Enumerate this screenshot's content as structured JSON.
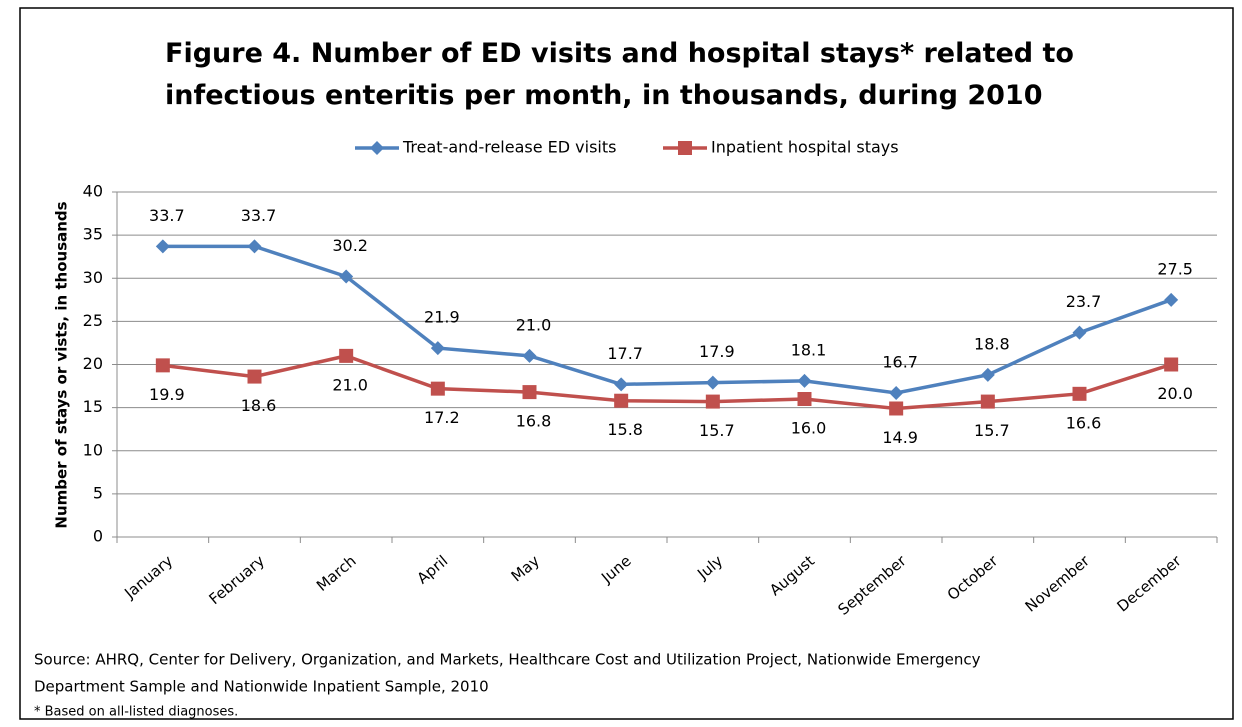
{
  "chart_data": {
    "type": "line",
    "title": [
      "Figure 4. Number of ED visits and hospital stays* related to",
      "infectious enteritis per month, in thousands, during 2010"
    ],
    "y_label": "Number of stays or vists, in thousands",
    "categories": [
      "January",
      "February",
      "March",
      "April",
      "May",
      "June",
      "July",
      "August",
      "September",
      "October",
      "November",
      "December"
    ],
    "series": [
      {
        "name": "Treat-and-release ED visits",
        "color": "#4f81bd",
        "marker": "diamond",
        "values": [
          33.7,
          33.7,
          30.2,
          21.9,
          21.0,
          17.7,
          17.9,
          18.1,
          16.7,
          18.8,
          23.7,
          27.5
        ],
        "value_labels": [
          "33.7",
          "33.7",
          "30.2",
          "21.9",
          "21.0",
          "17.7",
          "17.9",
          "18.1",
          "16.7",
          "18.8",
          "23.7",
          "27.5"
        ]
      },
      {
        "name": "Inpatient hospital stays",
        "color": "#c0504d",
        "marker": "square",
        "values": [
          19.9,
          18.6,
          21.0,
          17.2,
          16.8,
          15.8,
          15.7,
          16.0,
          14.9,
          15.7,
          16.6,
          20.0
        ],
        "value_labels": [
          "19.9",
          "18.6",
          "21.0",
          "17.2",
          "16.8",
          "15.8",
          "15.7",
          "16.0",
          "14.9",
          "15.7",
          "16.6",
          "20.0"
        ]
      }
    ],
    "ylim": [
      0,
      40
    ],
    "yticks": [
      0,
      5,
      10,
      15,
      20,
      25,
      30,
      35,
      40
    ],
    "grid": true,
    "legend": "top",
    "notes": [
      "Source: AHRQ, Center for Delivery, Organization, and Markets, Healthcare Cost and Utilization Project, Nationwide Emergency",
      "Department Sample and Nationwide Inpatient Sample, 2010",
      "* Based on all-listed diagnoses."
    ]
  }
}
